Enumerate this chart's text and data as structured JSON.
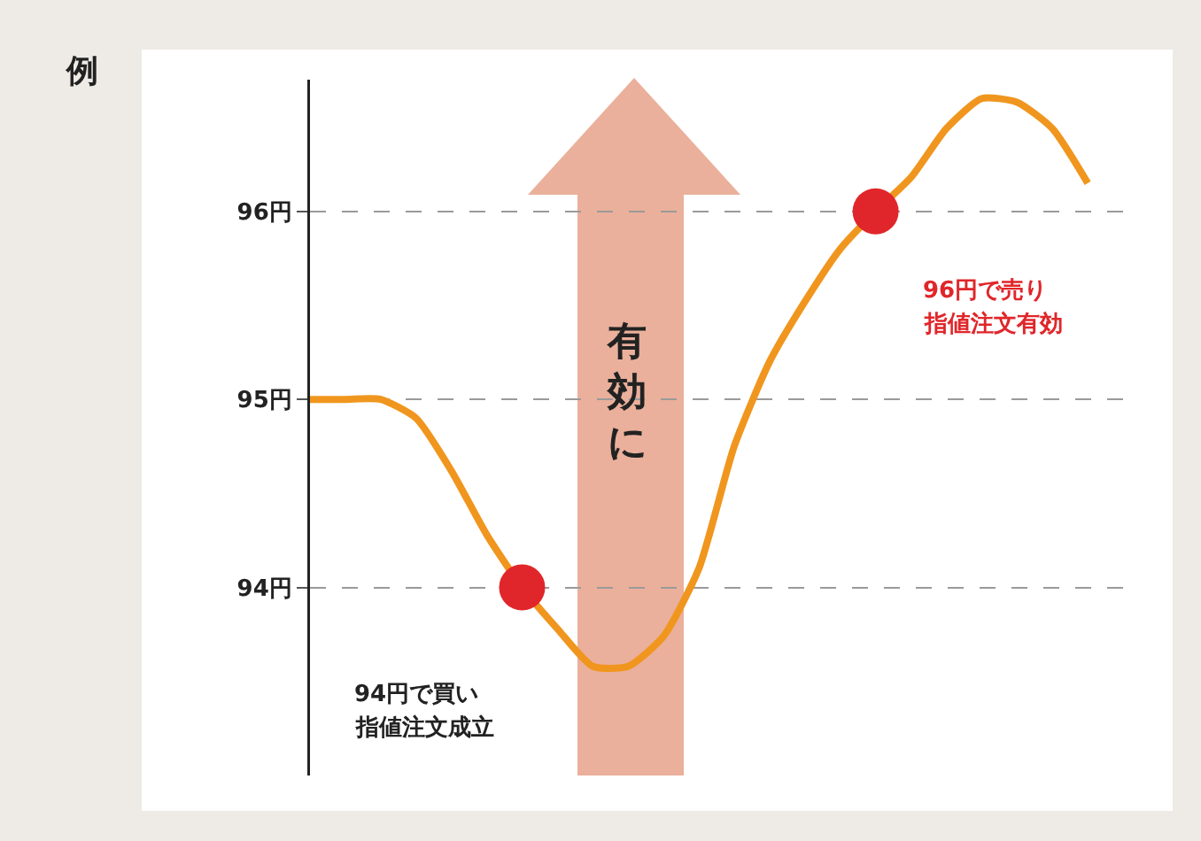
{
  "chart_data": {
    "type": "line",
    "title": "例",
    "categories": [
      null,
      null,
      null,
      null,
      null,
      null,
      null,
      null,
      null,
      null,
      null,
      null,
      null,
      null,
      null,
      null,
      null,
      null,
      null,
      null,
      null,
      null,
      null
    ],
    "series": [
      {
        "color": "#f0961e",
        "marker": "none",
        "values": [
          95.0,
          95.0,
          95.0,
          94.9,
          94.62,
          94.28,
          94.0,
          93.78,
          93.58,
          93.58,
          93.74,
          94.1,
          94.75,
          95.2,
          95.52,
          95.8,
          96.0,
          96.18,
          96.44,
          96.6,
          96.58,
          96.44,
          96.15
        ]
      },
      {
        "type": "scatter",
        "color": "#e0262a",
        "marker": "circle",
        "values": [
          null,
          null,
          null,
          null,
          null,
          null,
          94.0,
          null,
          null,
          null,
          null,
          null,
          null,
          null,
          null,
          null,
          96.0,
          null,
          null,
          null,
          null,
          null,
          null
        ]
      }
    ],
    "ylim": [
      93,
      96.7
    ],
    "yticks": [
      {
        "value": 94,
        "label": "94円"
      },
      {
        "value": 95,
        "label": "95円"
      },
      {
        "value": 96,
        "label": "96円"
      }
    ],
    "grid": "y",
    "tick_labels": "y",
    "annotations": [
      "94円で買い",
      "指値注文成立",
      "96円で売り",
      "指値注文有効",
      "有効に"
    ]
  }
}
